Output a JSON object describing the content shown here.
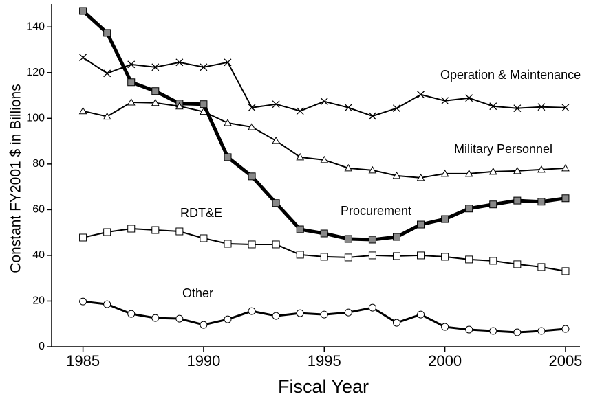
{
  "chart_data": {
    "type": "line",
    "x_label": "Fiscal Year",
    "y_label": "Constant FY2001 $ in Billions",
    "x": [
      1985,
      1986,
      1987,
      1988,
      1989,
      1990,
      1991,
      1992,
      1993,
      1994,
      1995,
      1996,
      1997,
      1998,
      1999,
      2000,
      2001,
      2002,
      2003,
      2004,
      2005
    ],
    "xlim": [
      1983.7,
      2005.6
    ],
    "xticks": [
      1985,
      1990,
      1995,
      2000,
      2005
    ],
    "ylim": [
      0,
      150
    ],
    "yticks": [
      0,
      20,
      40,
      60,
      80,
      100,
      120,
      140
    ],
    "grid": false,
    "series": [
      {
        "name": "Procurement",
        "color": "#000000",
        "marker": "square-filled",
        "line_width": 5,
        "values": [
          147,
          137.4,
          115.8,
          111.9,
          106.5,
          106.2,
          83,
          74.6,
          62.9,
          51.4,
          49.6,
          47.2,
          46.9,
          48.1,
          53.5,
          55.9,
          60.5,
          62.3,
          64,
          63.5,
          65
        ]
      },
      {
        "name": "Operation & Maintenance",
        "color": "#000000",
        "marker": "x",
        "line_width": 2,
        "values": [
          126.6,
          119.7,
          123.6,
          122.4,
          124.5,
          122.4,
          124.5,
          104.7,
          106.2,
          103.2,
          107.4,
          104.7,
          101,
          104.4,
          110.4,
          107.7,
          108.9,
          105.3,
          104.4,
          105,
          104.7
        ]
      },
      {
        "name": "Military Personnel",
        "color": "#000000",
        "marker": "triangle",
        "line_width": 2,
        "values": [
          103.2,
          100.8,
          107,
          106.8,
          105.3,
          102.9,
          98,
          96.2,
          90.2,
          83,
          81.8,
          78.2,
          77.3,
          74.9,
          74,
          75.8,
          75.8,
          76.7,
          77,
          77.6,
          78.2
        ]
      },
      {
        "name": "RDT&E",
        "color": "#000000",
        "marker": "square",
        "line_width": 2,
        "values": [
          47.8,
          50.2,
          51.7,
          51.1,
          50.5,
          47.5,
          45.1,
          44.8,
          44.8,
          40.3,
          39.4,
          39.1,
          40,
          39.7,
          40,
          39.4,
          38.2,
          37.6,
          36.1,
          34.9,
          33.1
        ]
      },
      {
        "name": "Other",
        "color": "#000000",
        "marker": "circle",
        "line_width": 3,
        "values": [
          19.8,
          18.6,
          14.4,
          12.6,
          12.3,
          9.6,
          12,
          15.6,
          13.5,
          14.7,
          14.1,
          15,
          17.1,
          10.5,
          14.1,
          8.7,
          7.5,
          6.9,
          6.3,
          6.9,
          7.8
        ]
      }
    ]
  }
}
